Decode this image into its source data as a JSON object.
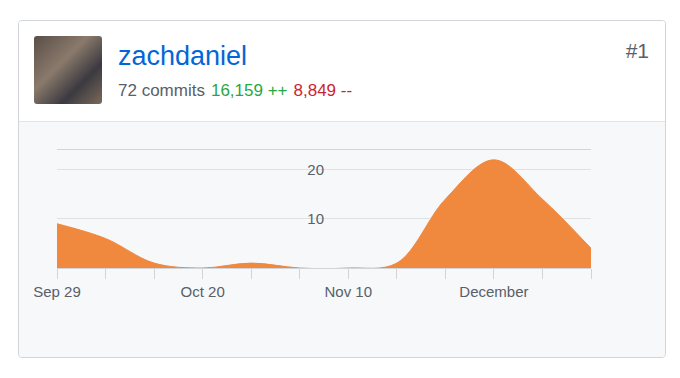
{
  "header": {
    "username": "zachdaniel",
    "commits": "72 commits",
    "additions": "16,159 ++",
    "deletions": "8,849 --",
    "rank": "#1"
  },
  "chart_data": {
    "type": "area",
    "categories": [
      "Sep 29",
      null,
      null,
      "Oct 20",
      null,
      null,
      "Nov 10",
      null,
      null,
      "December",
      null,
      null
    ],
    "values": [
      9,
      6,
      1,
      0,
      1,
      0,
      0,
      1,
      14,
      22,
      14,
      4
    ],
    "color": "#f0883e",
    "ylim": [
      0,
      24
    ],
    "yticks": [
      10,
      20
    ],
    "grid": true
  }
}
